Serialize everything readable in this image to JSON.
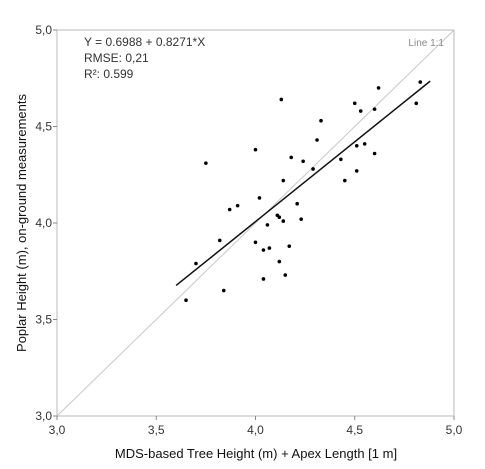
{
  "chart_data": {
    "type": "scatter",
    "xlabel": "MDS-based Tree Height (m) + Apex Length [1 m]",
    "ylabel": "Poplar Height (m), on-ground measurements",
    "xlim": [
      3.0,
      5.0
    ],
    "ylim": [
      3.0,
      5.0
    ],
    "xticks": [
      "3,0",
      "3,5",
      "4,0",
      "4,5",
      "5,0"
    ],
    "yticks": [
      "3,0",
      "3,5",
      "4,0",
      "4,5",
      "5,0"
    ],
    "grid": false,
    "annotations": {
      "equation": "Y = 0.6988 + 0.8271*X",
      "rmse": "RMSE: 0,21",
      "r2": "R²: 0.599",
      "identity_label": "Line 1:1"
    },
    "regression": {
      "intercept": 0.6988,
      "slope": 0.8271,
      "x_range": [
        3.6,
        4.88
      ]
    },
    "identity_line": {
      "x": [
        3.0,
        5.0
      ],
      "y": [
        3.0,
        5.0
      ]
    },
    "points": [
      {
        "x": 3.65,
        "y": 3.6
      },
      {
        "x": 3.7,
        "y": 3.79
      },
      {
        "x": 3.75,
        "y": 4.31
      },
      {
        "x": 3.82,
        "y": 3.91
      },
      {
        "x": 3.84,
        "y": 3.65
      },
      {
        "x": 3.87,
        "y": 4.07
      },
      {
        "x": 3.91,
        "y": 4.09
      },
      {
        "x": 4.0,
        "y": 4.38
      },
      {
        "x": 4.0,
        "y": 3.9
      },
      {
        "x": 4.02,
        "y": 4.13
      },
      {
        "x": 4.04,
        "y": 3.86
      },
      {
        "x": 4.04,
        "y": 3.71
      },
      {
        "x": 4.06,
        "y": 3.99
      },
      {
        "x": 4.07,
        "y": 3.87
      },
      {
        "x": 4.11,
        "y": 4.04
      },
      {
        "x": 4.12,
        "y": 4.03
      },
      {
        "x": 4.12,
        "y": 3.8
      },
      {
        "x": 4.13,
        "y": 4.64
      },
      {
        "x": 4.14,
        "y": 4.22
      },
      {
        "x": 4.14,
        "y": 4.01
      },
      {
        "x": 4.15,
        "y": 3.73
      },
      {
        "x": 4.17,
        "y": 3.88
      },
      {
        "x": 4.18,
        "y": 4.34
      },
      {
        "x": 4.21,
        "y": 4.1
      },
      {
        "x": 4.23,
        "y": 4.02
      },
      {
        "x": 4.24,
        "y": 4.32
      },
      {
        "x": 4.29,
        "y": 4.28
      },
      {
        "x": 4.31,
        "y": 4.43
      },
      {
        "x": 4.33,
        "y": 4.53
      },
      {
        "x": 4.43,
        "y": 4.33
      },
      {
        "x": 4.45,
        "y": 4.22
      },
      {
        "x": 4.5,
        "y": 4.62
      },
      {
        "x": 4.51,
        "y": 4.4
      },
      {
        "x": 4.51,
        "y": 4.27
      },
      {
        "x": 4.53,
        "y": 4.58
      },
      {
        "x": 4.55,
        "y": 4.41
      },
      {
        "x": 4.6,
        "y": 4.59
      },
      {
        "x": 4.6,
        "y": 4.36
      },
      {
        "x": 4.62,
        "y": 4.7
      },
      {
        "x": 4.81,
        "y": 4.62
      },
      {
        "x": 4.83,
        "y": 4.73
      }
    ]
  }
}
